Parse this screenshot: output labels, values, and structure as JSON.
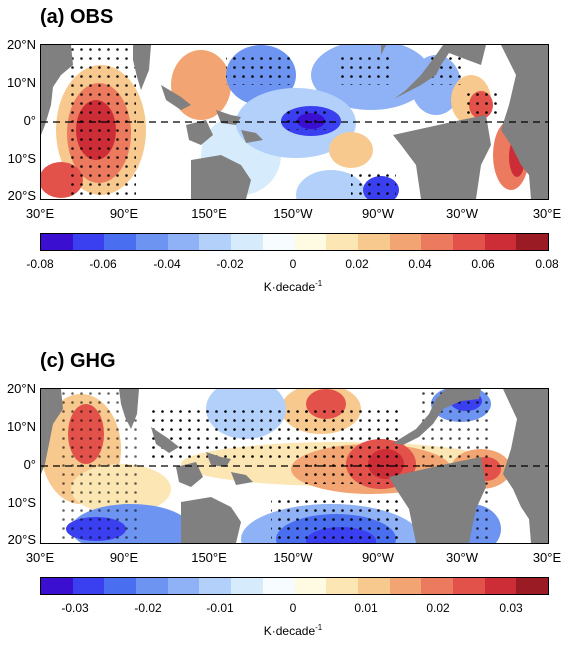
{
  "panels": [
    {
      "title": "(a) OBS",
      "lat_labels": [
        "20°N",
        "10°N",
        "0°",
        "10°S",
        "20°S"
      ],
      "lon_labels": [
        "30°E",
        "90°E",
        "150°E",
        "150°W",
        "90°W",
        "30°W",
        "30°E"
      ],
      "colorbar_ticks": [
        "-0.08",
        "-0.06",
        "-0.04",
        "-0.02",
        "0",
        "0.02",
        "0.04",
        "0.06",
        "0.08"
      ],
      "colorbar_unit": "K·decade",
      "colorbar_unit_exp": "-1"
    },
    {
      "title": "(c) GHG",
      "lat_labels": [
        "20°N",
        "10°N",
        "0°",
        "10°S",
        "20°S"
      ],
      "lon_labels": [
        "30°E",
        "90°E",
        "150°E",
        "150°W",
        "90°W",
        "30°W",
        "30°E"
      ],
      "colorbar_ticks": [
        "-0.03",
        "-0.02",
        "-0.01",
        "0",
        "0.01",
        "0.02",
        "0.03"
      ],
      "colorbar_unit": "K·decade",
      "colorbar_unit_exp": "-1"
    }
  ],
  "colors": {
    "land": "#808080",
    "palette": [
      "#3a0fd0",
      "#3a3ff0",
      "#4a6ef0",
      "#6e94f2",
      "#8fb2f6",
      "#b2d0fa",
      "#d6ecfc",
      "#f7fdff",
      "#fffbe3",
      "#fbe6b4",
      "#f7c98e",
      "#f2a472",
      "#ec7a5e",
      "#e2514a",
      "#cc2d36",
      "#9a1b24"
    ]
  }
}
